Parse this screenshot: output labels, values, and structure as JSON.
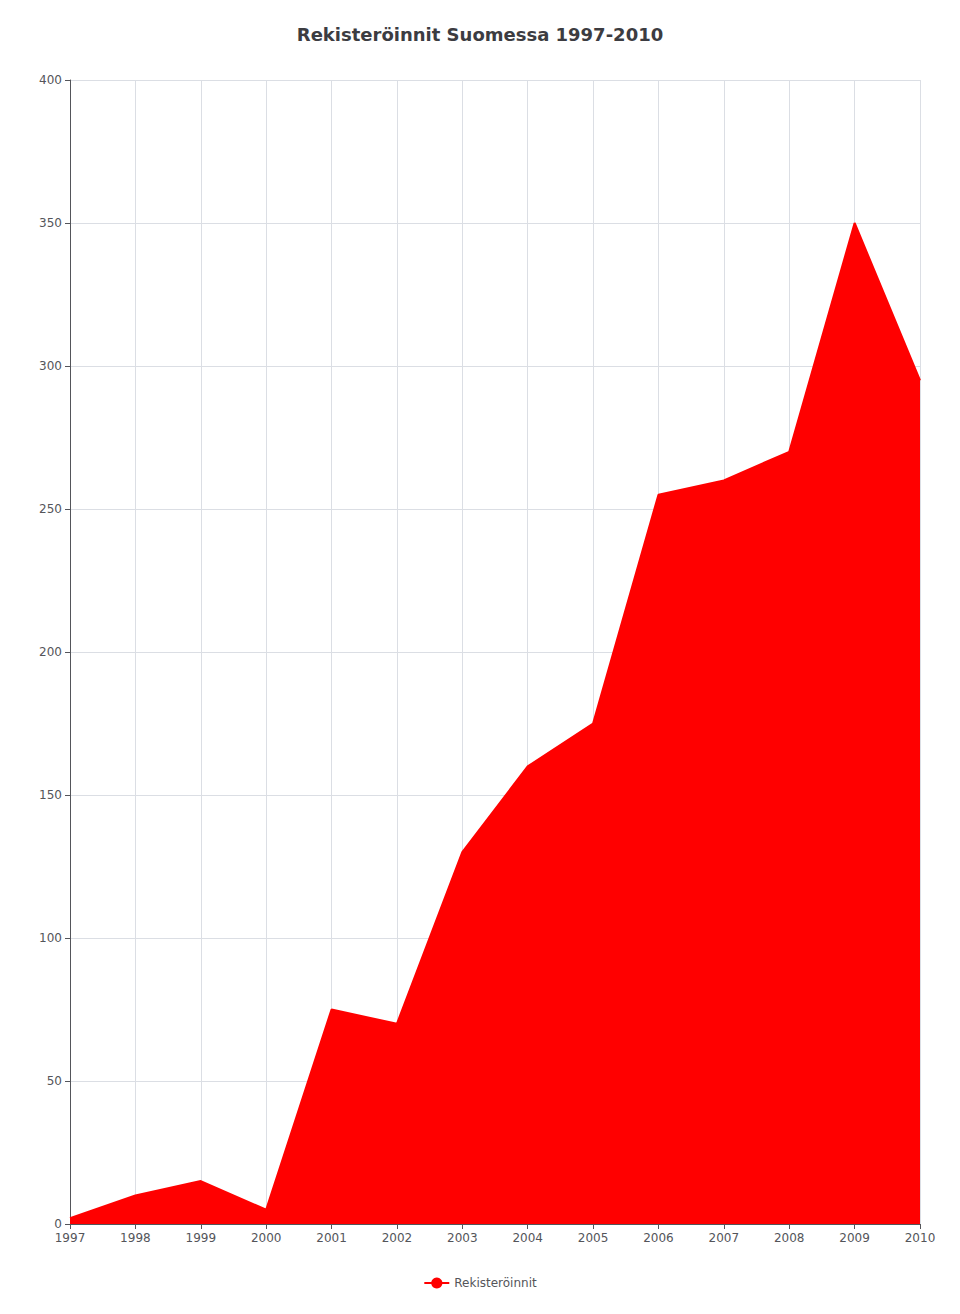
{
  "chart_data": {
    "type": "area",
    "title": "Rekisteröinnit Suomessa 1997-2010",
    "x": [
      1997,
      1998,
      1999,
      2000,
      2001,
      2002,
      2003,
      2004,
      2005,
      2006,
      2007,
      2008,
      2009,
      2010
    ],
    "series": [
      {
        "name": "Rekisteröinnit",
        "color": "#FF0000",
        "values": [
          2,
          10,
          15,
          5,
          75,
          70,
          130,
          160,
          175,
          255,
          260,
          270,
          350,
          295
        ]
      }
    ],
    "xlim": [
      1997,
      2010
    ],
    "xticks": [
      1997,
      1998,
      1999,
      2000,
      2001,
      2002,
      2003,
      2004,
      2005,
      2006,
      2007,
      2008,
      2009,
      2010
    ],
    "ylim": [
      0,
      400
    ],
    "yticks": [
      0,
      50,
      100,
      150,
      200,
      250,
      300,
      350,
      400
    ],
    "grid": true,
    "legend": "bottom"
  }
}
